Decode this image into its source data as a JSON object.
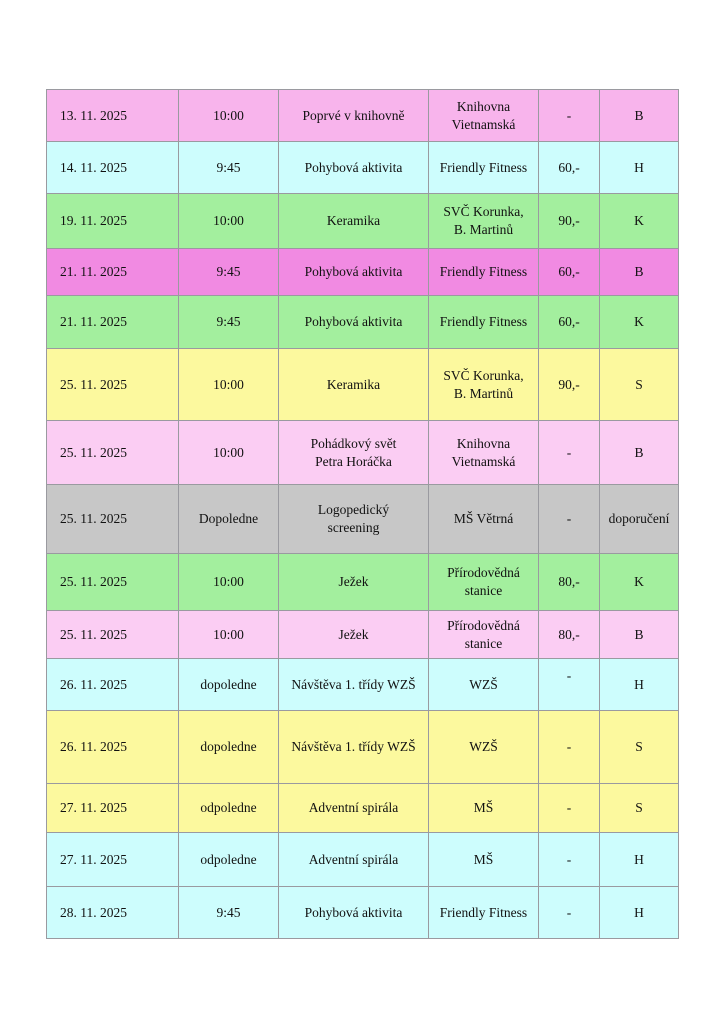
{
  "table": {
    "colors": {
      "pink": "#f8b4ec",
      "violet": "#f18ae2",
      "lightpink": "#fbcdf3",
      "cyan": "#cdfdfd",
      "green": "#a3ef9e",
      "yellow": "#fcf99e",
      "gray": "#c7c7c7"
    },
    "rows": [
      {
        "date": "13. 11. 2025",
        "time": "10:00",
        "event": "Poprvé v knihovně",
        "location": "Knihovna\nVietnamská",
        "price": "-",
        "code": "B",
        "color": "pink"
      },
      {
        "date": "14. 11. 2025",
        "time": "9:45",
        "event": "Pohybová aktivita",
        "location": "Friendly Fitness",
        "price": "60,-",
        "code": "H",
        "color": "cyan"
      },
      {
        "date": "19. 11. 2025",
        "time": "10:00",
        "event": "Keramika",
        "location": "SVČ Korunka,\nB. Martinů",
        "price": "90,-",
        "code": "K",
        "color": "green"
      },
      {
        "date": "21. 11. 2025",
        "time": "9:45",
        "event": "Pohybová aktivita",
        "location": "Friendly Fitness",
        "price": "60,-",
        "code": "B",
        "color": "violet"
      },
      {
        "date": "21. 11. 2025",
        "time": "9:45",
        "event": "Pohybová aktivita",
        "location": "Friendly Fitness",
        "price": "60,-",
        "code": "K",
        "color": "green"
      },
      {
        "date": "25. 11. 2025",
        "time": "10:00",
        "event": "Keramika",
        "location": "SVČ Korunka,\nB. Martinů",
        "price": "90,-",
        "code": "S",
        "color": "yellow"
      },
      {
        "date": "25. 11. 2025",
        "time": "10:00",
        "event": "Pohádkový svět\nPetra Horáčka",
        "location": "Knihovna\nVietnamská",
        "price": "-",
        "code": "B",
        "color": "lightpink"
      },
      {
        "date": "25. 11. 2025",
        "time": "Dopoledne",
        "event": "Logopedický\nscreening",
        "location": "MŠ Větrná",
        "price": "-",
        "code": "doporučení",
        "color": "gray"
      },
      {
        "date": "25. 11. 2025",
        "time": "10:00",
        "event": "Ježek",
        "location": "Přírodovědná\nstanice",
        "price": "80,-",
        "code": "K",
        "color": "green"
      },
      {
        "date": "25. 11. 2025",
        "time": "10:00",
        "event": "Ježek",
        "location": "Přírodovědná\nstanice",
        "price": "80,-",
        "code": "B",
        "color": "lightpink"
      },
      {
        "date": "26. 11. 2025",
        "time": "dopoledne",
        "event": "Návštěva 1. třídy WZŠ",
        "location": "WZŠ",
        "price": "-",
        "code": "H",
        "color": "cyan",
        "price_align": "top"
      },
      {
        "date": "26. 11. 2025",
        "time": "dopoledne",
        "event": "Návštěva 1. třídy WZŠ",
        "location": "WZŠ",
        "price": "-",
        "code": "S",
        "color": "yellow"
      },
      {
        "date": "27. 11. 2025",
        "time": "odpoledne",
        "event": "Adventní spirála",
        "location": "MŠ",
        "price": "-",
        "code": "S",
        "color": "yellow"
      },
      {
        "date": "27. 11. 2025",
        "time": "odpoledne",
        "event": "Adventní spirála",
        "location": "MŠ",
        "price": "-",
        "code": "H",
        "color": "cyan"
      },
      {
        "date": "28. 11. 2025",
        "time": "9:45",
        "event": "Pohybová aktivita",
        "location": "Friendly Fitness",
        "price": "-",
        "code": "H",
        "color": "cyan"
      }
    ]
  }
}
